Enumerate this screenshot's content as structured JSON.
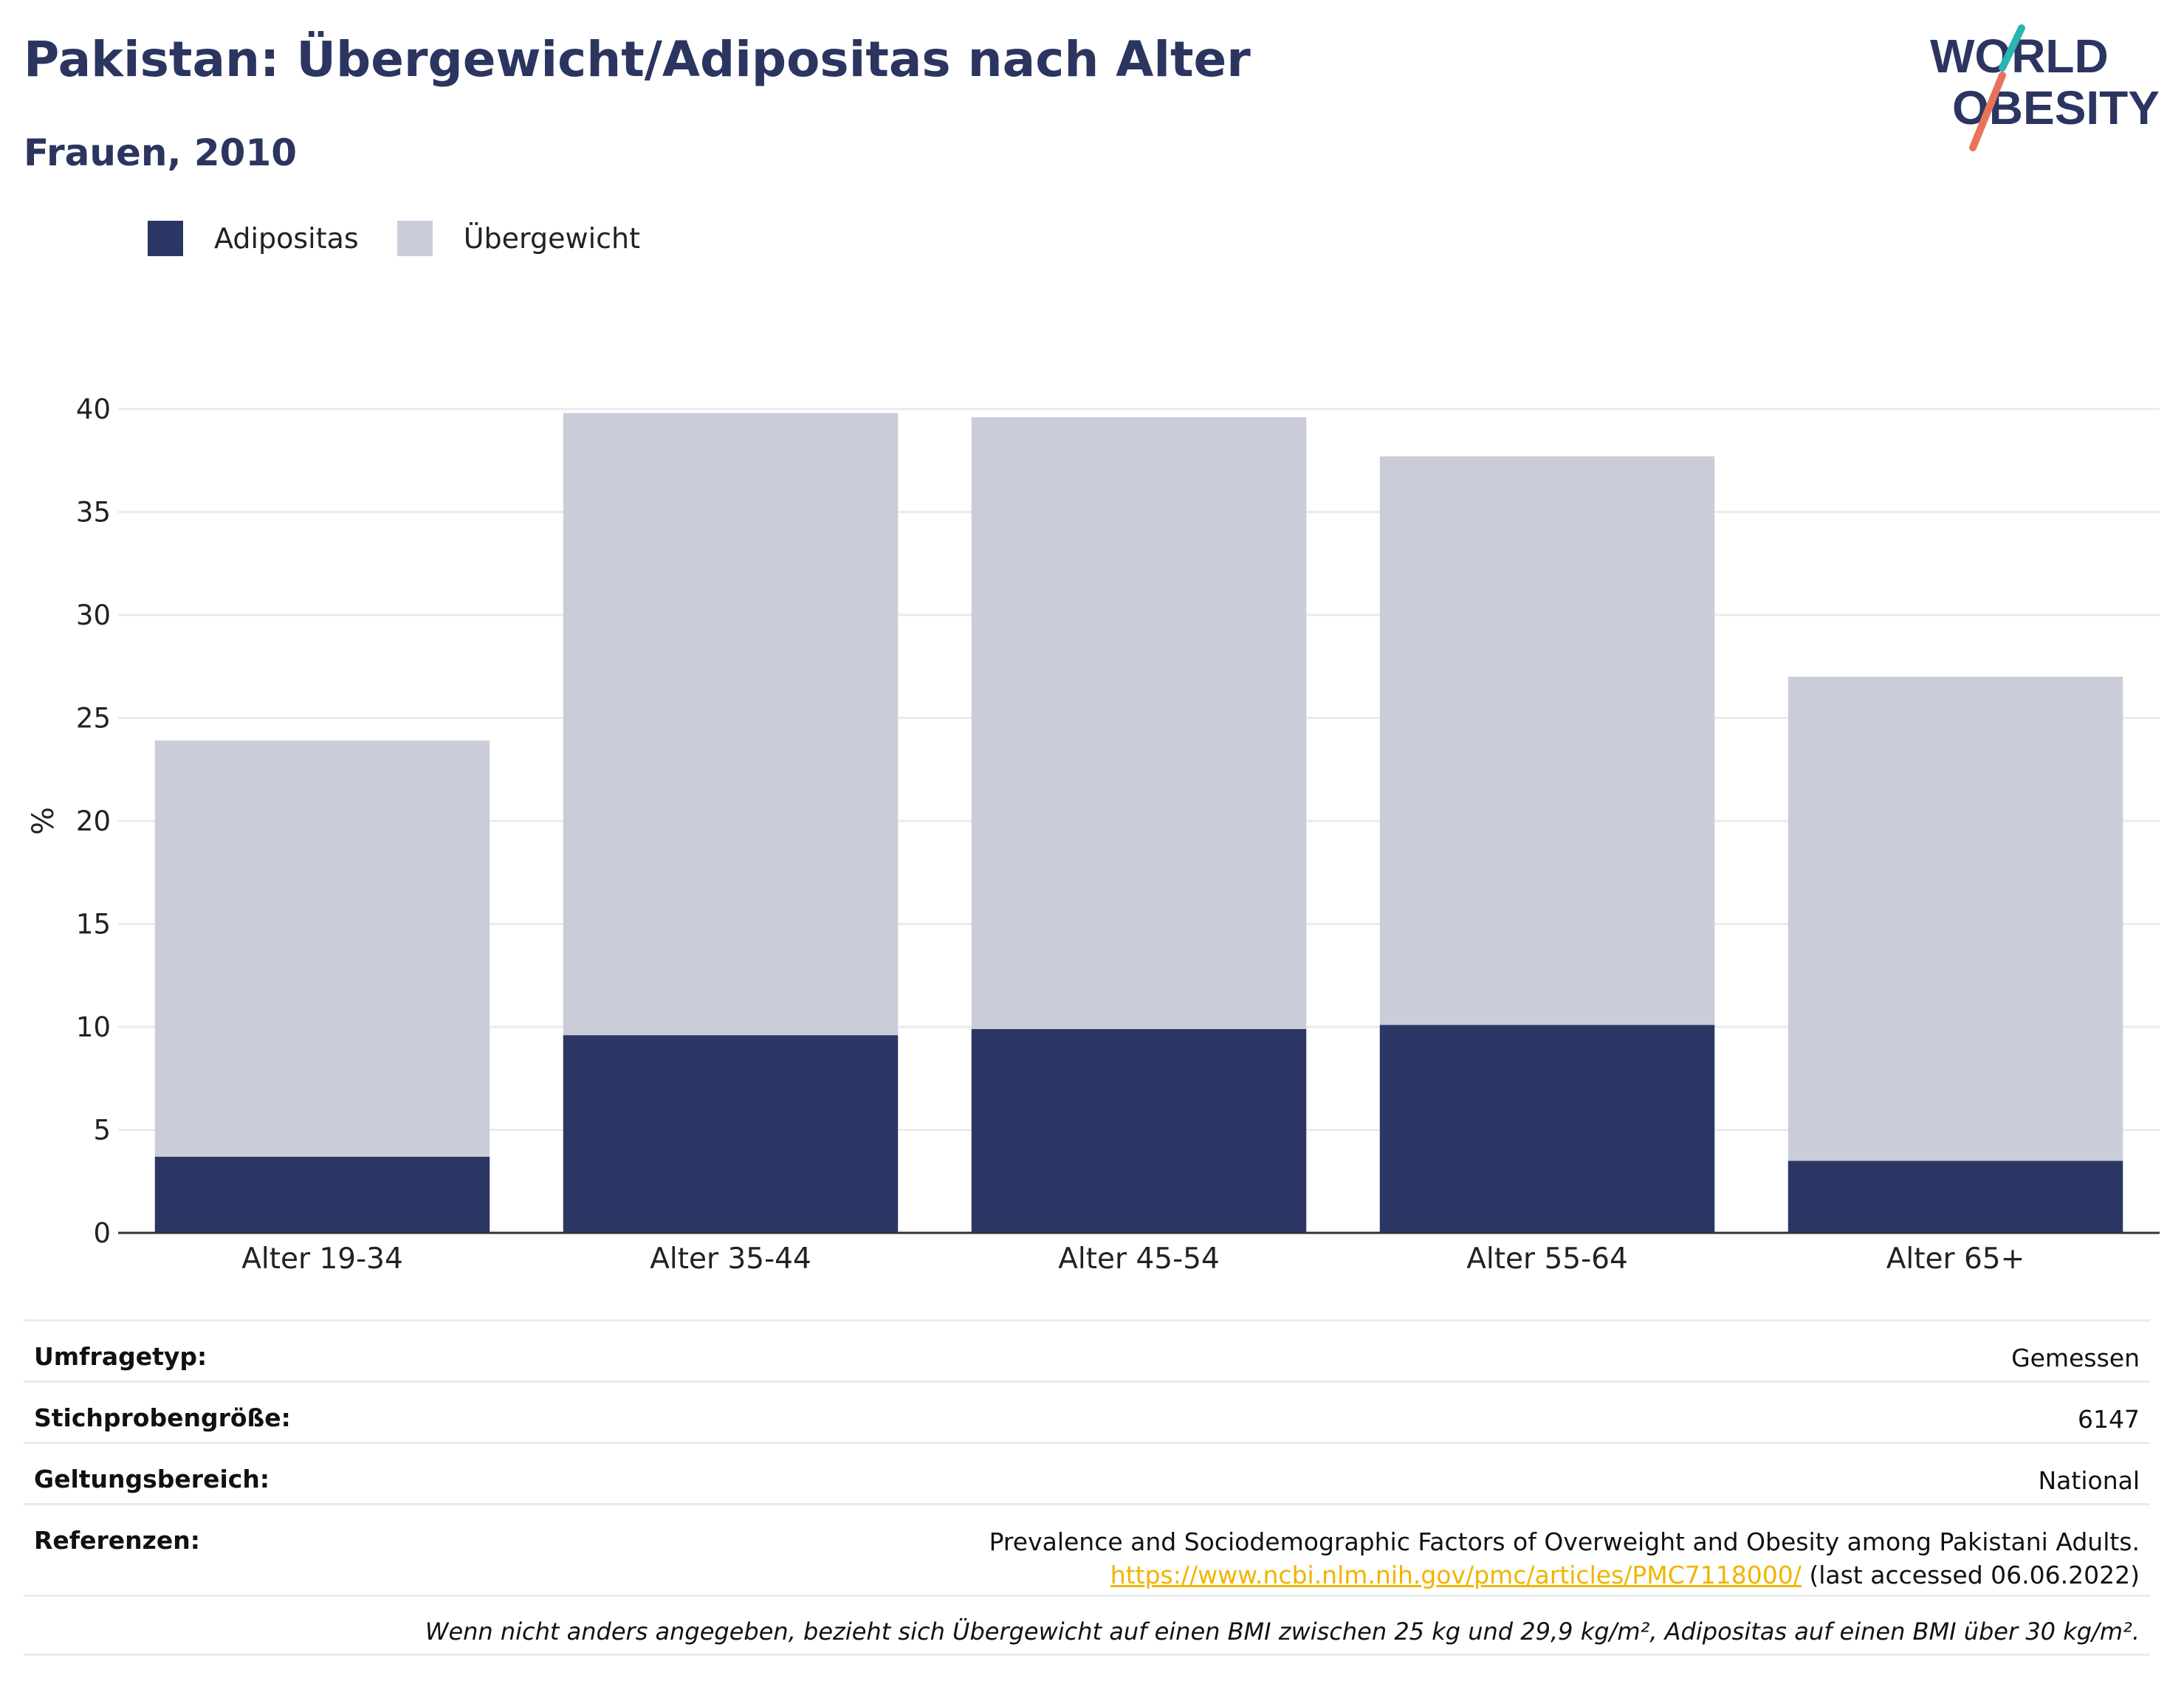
{
  "header": {
    "title": "Pakistan: Übergewicht/Adipositas nach Alter",
    "subtitle": "Frauen, 2010"
  },
  "logo": {
    "line1": "WORLD",
    "line2": "OBESITY"
  },
  "legend": [
    {
      "label": "Adipositas",
      "color": "#2b3664"
    },
    {
      "label": "Übergewicht",
      "color": "#cacdd9"
    }
  ],
  "chart_data": {
    "type": "bar",
    "stacked": true,
    "categories": [
      "Alter 19-34",
      "Alter 35-44",
      "Alter 45-54",
      "Alter 55-64",
      "Alter 65+"
    ],
    "series": [
      {
        "name": "Adipositas",
        "color": "#2b3664",
        "values": [
          3.7,
          9.6,
          9.9,
          10.1,
          3.5
        ]
      },
      {
        "name": "Übergewicht",
        "color": "#cacdd9",
        "values": [
          20.2,
          30.2,
          29.7,
          27.6,
          23.5
        ]
      }
    ],
    "ylabel": "%",
    "xlabel": "",
    "ylim": [
      0,
      40
    ],
    "yticks": [
      0,
      5,
      10,
      15,
      20,
      25,
      30,
      35,
      40
    ],
    "grid": true,
    "legend_position": "top-left"
  },
  "info": {
    "survey_type": {
      "label": "Umfragetyp:",
      "value": "Gemessen"
    },
    "sample_size": {
      "label": "Stichprobengröße:",
      "value": "6147"
    },
    "coverage": {
      "label": "Geltungsbereich:",
      "value": "National"
    },
    "references": {
      "label": "Referenzen:",
      "title": "Prevalence and Sociodemographic Factors of Overweight and Obesity among Pakistani Adults.",
      "url": "https://www.ncbi.nlm.nih.gov/pmc/articles/PMC7118000/",
      "accessed": " (last accessed 06.06.2022)"
    },
    "note": "Wenn nicht anders angegeben, bezieht sich Übergewicht auf einen BMI zwischen 25 kg und 29,9 kg/m², Adipositas auf einen BMI über 30 kg/m²."
  }
}
